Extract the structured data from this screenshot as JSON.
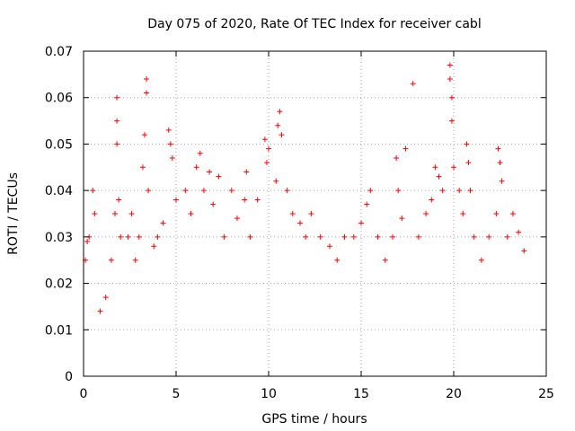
{
  "chart_data": {
    "type": "scatter",
    "title": "Day 075 of 2020, Rate Of TEC Index for receiver cabl",
    "xlabel": "GPS time / hours",
    "ylabel": "ROTI / TECUs",
    "xlim": [
      0,
      25
    ],
    "ylim": [
      0,
      0.07
    ],
    "xticks": [
      0,
      5,
      10,
      15,
      20,
      25
    ],
    "xtick_labels": [
      "0",
      "5",
      "10",
      "15",
      "20",
      "25"
    ],
    "yticks": [
      0,
      0.01,
      0.02,
      0.03,
      0.04,
      0.05,
      0.06,
      0.07
    ],
    "ytick_labels": [
      "0",
      "0.01",
      "0.02",
      "0.03",
      "0.04",
      "0.05",
      "0.06",
      "0.07"
    ],
    "grid": true,
    "marker": "+",
    "marker_color": "#ff0000",
    "series": [
      {
        "name": "ROTI",
        "points": [
          [
            0.1,
            0.025
          ],
          [
            0.2,
            0.029
          ],
          [
            0.3,
            0.03
          ],
          [
            0.5,
            0.04
          ],
          [
            0.6,
            0.035
          ],
          [
            0.9,
            0.014
          ],
          [
            1.2,
            0.017
          ],
          [
            1.5,
            0.025
          ],
          [
            1.7,
            0.035
          ],
          [
            1.8,
            0.06
          ],
          [
            1.8,
            0.055
          ],
          [
            1.8,
            0.05
          ],
          [
            1.9,
            0.038
          ],
          [
            2.0,
            0.03
          ],
          [
            2.4,
            0.03
          ],
          [
            2.6,
            0.035
          ],
          [
            2.8,
            0.025
          ],
          [
            3.0,
            0.03
          ],
          [
            3.2,
            0.045
          ],
          [
            3.3,
            0.052
          ],
          [
            3.4,
            0.064
          ],
          [
            3.4,
            0.061
          ],
          [
            3.5,
            0.04
          ],
          [
            3.8,
            0.028
          ],
          [
            4.0,
            0.03
          ],
          [
            4.3,
            0.033
          ],
          [
            4.6,
            0.053
          ],
          [
            4.7,
            0.05
          ],
          [
            4.8,
            0.047
          ],
          [
            5.0,
            0.038
          ],
          [
            5.5,
            0.04
          ],
          [
            5.8,
            0.035
          ],
          [
            6.1,
            0.045
          ],
          [
            6.3,
            0.048
          ],
          [
            6.5,
            0.04
          ],
          [
            6.8,
            0.044
          ],
          [
            7.0,
            0.037
          ],
          [
            7.3,
            0.043
          ],
          [
            7.6,
            0.03
          ],
          [
            8.0,
            0.04
          ],
          [
            8.3,
            0.034
          ],
          [
            8.7,
            0.038
          ],
          [
            8.8,
            0.044
          ],
          [
            9.0,
            0.03
          ],
          [
            9.4,
            0.038
          ],
          [
            9.8,
            0.051
          ],
          [
            9.9,
            0.046
          ],
          [
            10.0,
            0.049
          ],
          [
            10.4,
            0.042
          ],
          [
            10.5,
            0.054
          ],
          [
            10.6,
            0.057
          ],
          [
            10.7,
            0.052
          ],
          [
            11.0,
            0.04
          ],
          [
            11.3,
            0.035
          ],
          [
            11.7,
            0.033
          ],
          [
            12.0,
            0.03
          ],
          [
            12.3,
            0.035
          ],
          [
            12.8,
            0.03
          ],
          [
            13.3,
            0.028
          ],
          [
            13.7,
            0.025
          ],
          [
            14.1,
            0.03
          ],
          [
            14.6,
            0.03
          ],
          [
            15.0,
            0.033
          ],
          [
            15.3,
            0.037
          ],
          [
            15.5,
            0.04
          ],
          [
            15.9,
            0.03
          ],
          [
            16.3,
            0.025
          ],
          [
            16.7,
            0.03
          ],
          [
            16.9,
            0.047
          ],
          [
            17.0,
            0.04
          ],
          [
            17.2,
            0.034
          ],
          [
            17.4,
            0.049
          ],
          [
            17.8,
            0.063
          ],
          [
            18.1,
            0.03
          ],
          [
            18.5,
            0.035
          ],
          [
            18.8,
            0.038
          ],
          [
            19.0,
            0.045
          ],
          [
            19.2,
            0.043
          ],
          [
            19.4,
            0.04
          ],
          [
            19.8,
            0.067
          ],
          [
            19.8,
            0.064
          ],
          [
            19.9,
            0.06
          ],
          [
            19.9,
            0.055
          ],
          [
            20.0,
            0.045
          ],
          [
            20.3,
            0.04
          ],
          [
            20.5,
            0.035
          ],
          [
            20.7,
            0.05
          ],
          [
            20.8,
            0.046
          ],
          [
            20.9,
            0.04
          ],
          [
            21.1,
            0.03
          ],
          [
            21.5,
            0.025
          ],
          [
            21.9,
            0.03
          ],
          [
            22.3,
            0.035
          ],
          [
            22.4,
            0.049
          ],
          [
            22.5,
            0.046
          ],
          [
            22.6,
            0.042
          ],
          [
            22.9,
            0.03
          ],
          [
            23.2,
            0.035
          ],
          [
            23.5,
            0.031
          ],
          [
            23.8,
            0.027
          ]
        ]
      }
    ]
  }
}
